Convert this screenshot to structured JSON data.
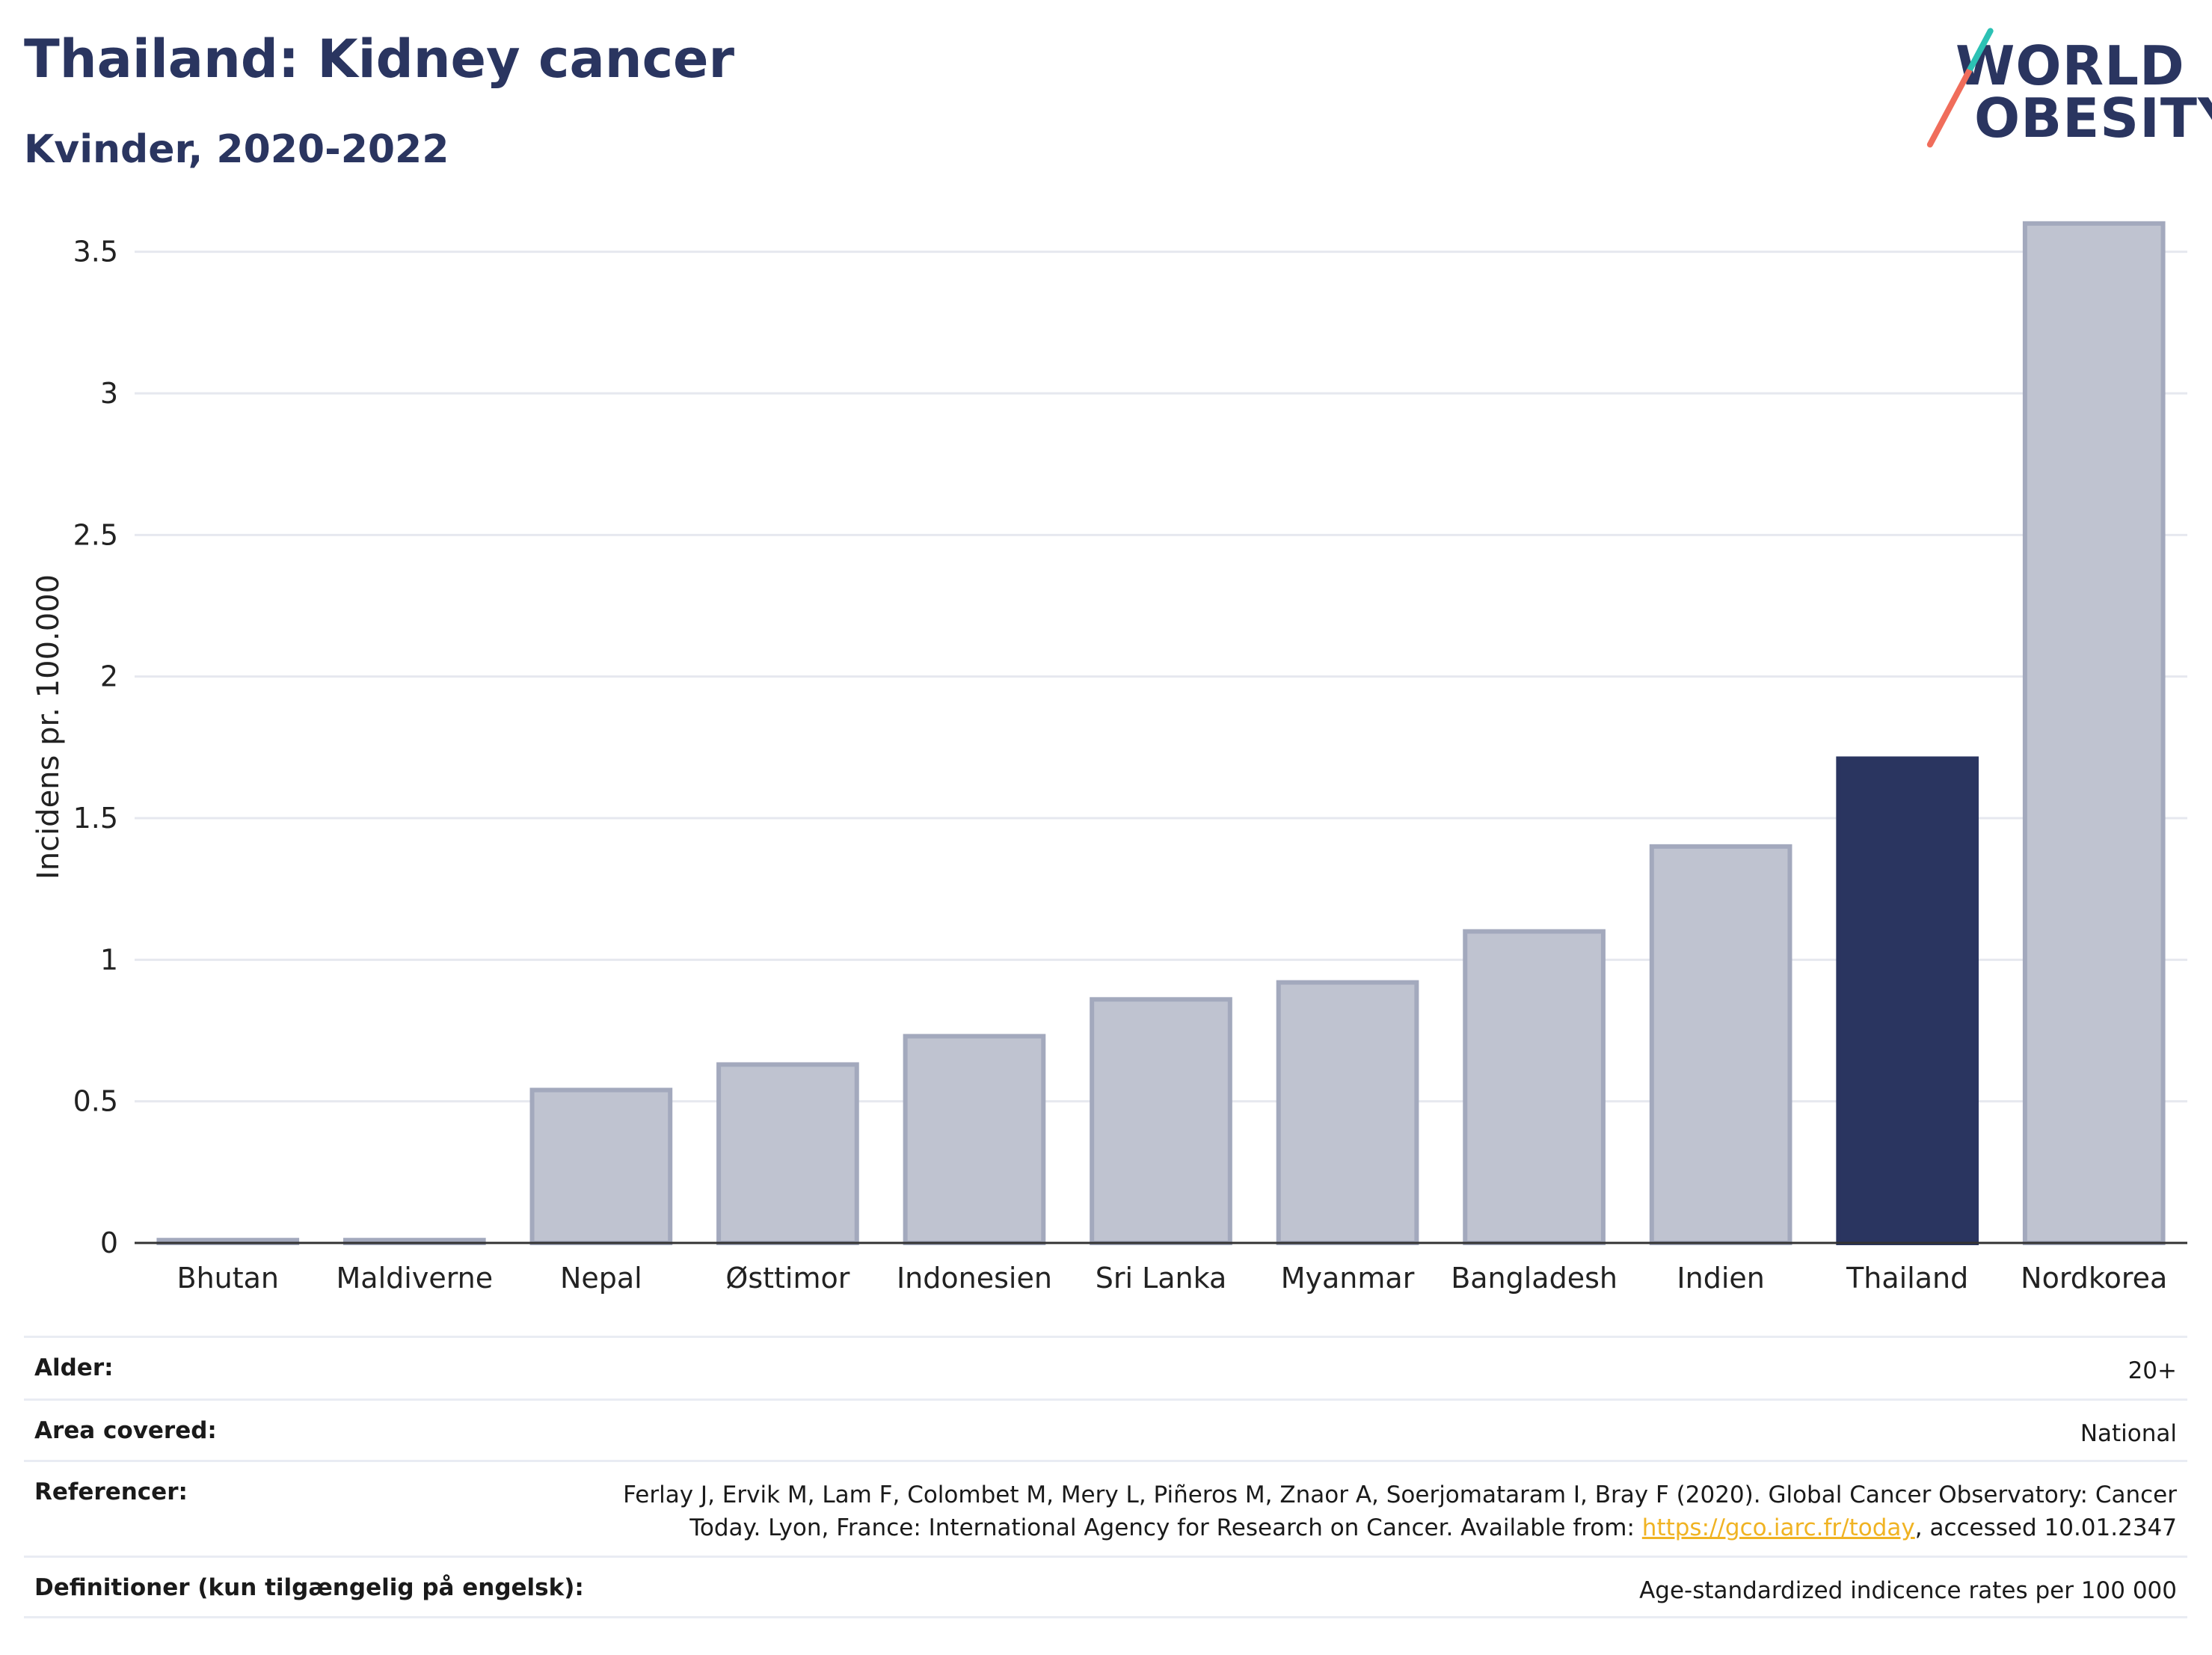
{
  "header": {
    "title": "Thailand: Kidney cancer",
    "subtitle": "Kvinder, 2020-2022"
  },
  "logo": {
    "line1": "WORLD",
    "line2": "OBESITY"
  },
  "chart_data": {
    "type": "bar",
    "categories": [
      "Bhutan",
      "Maldiverne",
      "Nepal",
      "Østtimor",
      "Indonesien",
      "Sri Lanka",
      "Myanmar",
      "Bangladesh",
      "Indien",
      "Thailand",
      "Nordkorea"
    ],
    "values": [
      0.01,
      0.01,
      0.54,
      0.63,
      0.73,
      0.86,
      0.92,
      1.1,
      1.4,
      1.71,
      3.6
    ],
    "highlight": "Thailand",
    "ylabel": "Incidens pr. 100.000",
    "ylim": [
      0,
      3.75
    ],
    "yticks": [
      0,
      0.5,
      1,
      1.5,
      2,
      2.5,
      3,
      3.5
    ],
    "ytick_labels": [
      "0",
      "0.5",
      "1",
      "1.5",
      "2",
      "2.5",
      "3",
      "3.5"
    ],
    "colors": {
      "bar": "#bfc3d0",
      "bar_border": "#a3a9bd",
      "highlight": "#2a3560",
      "grid": "#e6e8ef"
    },
    "grid": true
  },
  "info": {
    "rows": [
      {
        "key": "Alder:",
        "value": "20+"
      },
      {
        "key": "Area covered:",
        "value": "National"
      },
      {
        "key": "Referencer:",
        "value_pre": "Ferlay J, Ervik M, Lam F, Colombet M, Mery L, Piñeros M, Znaor A, Soerjomataram I, Bray F (2020). Global Cancer Observatory: Cancer Today. Lyon, France: International Agency for Research on Cancer. Available from: ",
        "link": "https://gco.iarc.fr/today",
        "value_post": ", accessed 10.01.2347"
      },
      {
        "key": "Definitioner (kun tilgængelig på engelsk):",
        "value": "Age-standardized indicence rates per 100 000"
      }
    ]
  }
}
